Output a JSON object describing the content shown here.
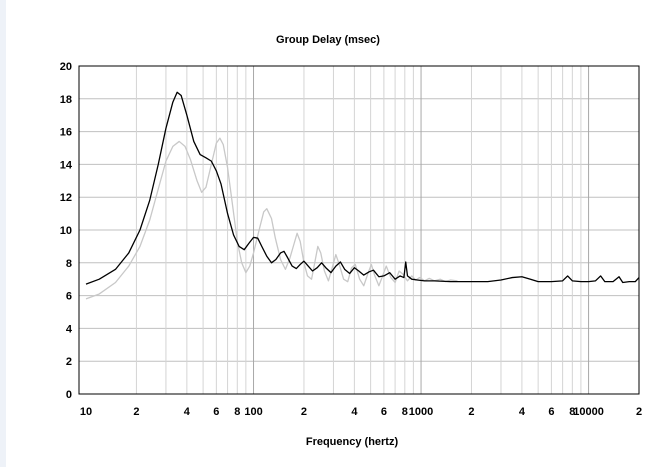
{
  "chart_data": {
    "type": "line",
    "title": "Group Delay (msec)",
    "xlabel": "Frequency (hertz)",
    "ylabel": "",
    "xscale": "log",
    "xlim": [
      10,
      20000
    ],
    "ylim": [
      0,
      20
    ],
    "grid": true,
    "colors": {
      "series_dark": "#000000",
      "series_light": "#c8c8c8",
      "grid": "#c0c0c0",
      "frame": "#000000"
    },
    "x_tick_labels": [
      {
        "x": 10,
        "label": "10"
      },
      {
        "x": 20,
        "label": "2"
      },
      {
        "x": 40,
        "label": "4"
      },
      {
        "x": 60,
        "label": "6"
      },
      {
        "x": 80,
        "label": "8"
      },
      {
        "x": 100,
        "label": "100"
      },
      {
        "x": 200,
        "label": "2"
      },
      {
        "x": 400,
        "label": "4"
      },
      {
        "x": 600,
        "label": "6"
      },
      {
        "x": 800,
        "label": "8"
      },
      {
        "x": 1000,
        "label": "1000"
      },
      {
        "x": 2000,
        "label": "2"
      },
      {
        "x": 4000,
        "label": "4"
      },
      {
        "x": 6000,
        "label": "6"
      },
      {
        "x": 8000,
        "label": "8"
      },
      {
        "x": 10000,
        "label": "10000"
      },
      {
        "x": 20000,
        "label": "2"
      }
    ],
    "y_ticks": [
      0,
      2,
      4,
      6,
      8,
      10,
      12,
      14,
      16,
      18,
      20
    ],
    "series": [
      {
        "color": "#000000",
        "points": [
          [
            10,
            6.7
          ],
          [
            12,
            7.0
          ],
          [
            15,
            7.6
          ],
          [
            18,
            8.6
          ],
          [
            21,
            10.0
          ],
          [
            24,
            11.8
          ],
          [
            27,
            14.0
          ],
          [
            30,
            16.2
          ],
          [
            33,
            17.8
          ],
          [
            35,
            18.4
          ],
          [
            37,
            18.2
          ],
          [
            40,
            17.0
          ],
          [
            44,
            15.4
          ],
          [
            48,
            14.6
          ],
          [
            52,
            14.4
          ],
          [
            56,
            14.2
          ],
          [
            60,
            13.6
          ],
          [
            64,
            12.8
          ],
          [
            70,
            11.0
          ],
          [
            76,
            9.7
          ],
          [
            82,
            9.0
          ],
          [
            88,
            8.8
          ],
          [
            94,
            9.2
          ],
          [
            100,
            9.55
          ],
          [
            106,
            9.5
          ],
          [
            112,
            9.0
          ],
          [
            120,
            8.4
          ],
          [
            128,
            8.0
          ],
          [
            136,
            8.2
          ],
          [
            145,
            8.6
          ],
          [
            152,
            8.7
          ],
          [
            160,
            8.3
          ],
          [
            170,
            7.8
          ],
          [
            180,
            7.65
          ],
          [
            190,
            7.9
          ],
          [
            200,
            8.1
          ],
          [
            212,
            7.8
          ],
          [
            225,
            7.5
          ],
          [
            240,
            7.7
          ],
          [
            255,
            8.0
          ],
          [
            270,
            7.7
          ],
          [
            290,
            7.4
          ],
          [
            310,
            7.8
          ],
          [
            330,
            8.05
          ],
          [
            350,
            7.6
          ],
          [
            375,
            7.35
          ],
          [
            400,
            7.7
          ],
          [
            425,
            7.5
          ],
          [
            455,
            7.25
          ],
          [
            490,
            7.45
          ],
          [
            520,
            7.55
          ],
          [
            560,
            7.15
          ],
          [
            600,
            7.2
          ],
          [
            650,
            7.4
          ],
          [
            700,
            7.0
          ],
          [
            750,
            7.2
          ],
          [
            790,
            7.1
          ],
          [
            810,
            8.05
          ],
          [
            830,
            7.2
          ],
          [
            880,
            7.0
          ],
          [
            950,
            6.95
          ],
          [
            1050,
            6.9
          ],
          [
            1200,
            6.9
          ],
          [
            1500,
            6.85
          ],
          [
            2000,
            6.85
          ],
          [
            2500,
            6.85
          ],
          [
            3000,
            6.95
          ],
          [
            3500,
            7.1
          ],
          [
            4000,
            7.15
          ],
          [
            4500,
            7.0
          ],
          [
            5000,
            6.85
          ],
          [
            6000,
            6.85
          ],
          [
            7000,
            6.9
          ],
          [
            7500,
            7.2
          ],
          [
            8000,
            6.9
          ],
          [
            9000,
            6.85
          ],
          [
            10000,
            6.85
          ],
          [
            11000,
            6.9
          ],
          [
            11800,
            7.2
          ],
          [
            12500,
            6.85
          ],
          [
            14000,
            6.85
          ],
          [
            15200,
            7.15
          ],
          [
            16000,
            6.8
          ],
          [
            17500,
            6.85
          ],
          [
            19000,
            6.85
          ],
          [
            20000,
            7.1
          ]
        ]
      },
      {
        "color": "#c8c8c8",
        "points": [
          [
            10,
            5.8
          ],
          [
            12,
            6.1
          ],
          [
            15,
            6.8
          ],
          [
            18,
            7.8
          ],
          [
            21,
            9.0
          ],
          [
            24,
            10.6
          ],
          [
            27,
            12.5
          ],
          [
            30,
            14.2
          ],
          [
            33,
            15.1
          ],
          [
            36,
            15.4
          ],
          [
            39,
            15.1
          ],
          [
            42,
            14.3
          ],
          [
            46,
            13.0
          ],
          [
            49,
            12.3
          ],
          [
            52,
            12.6
          ],
          [
            56,
            14.0
          ],
          [
            60,
            15.3
          ],
          [
            63,
            15.6
          ],
          [
            66,
            15.2
          ],
          [
            70,
            13.8
          ],
          [
            75,
            11.5
          ],
          [
            80,
            9.3
          ],
          [
            85,
            8.0
          ],
          [
            90,
            7.4
          ],
          [
            95,
            7.8
          ],
          [
            100,
            8.6
          ],
          [
            108,
            10.0
          ],
          [
            115,
            11.1
          ],
          [
            120,
            11.3
          ],
          [
            128,
            10.7
          ],
          [
            135,
            9.5
          ],
          [
            145,
            8.2
          ],
          [
            155,
            7.6
          ],
          [
            165,
            8.3
          ],
          [
            175,
            9.2
          ],
          [
            182,
            9.8
          ],
          [
            190,
            9.3
          ],
          [
            200,
            8.0
          ],
          [
            210,
            7.2
          ],
          [
            222,
            7.0
          ],
          [
            232,
            8.0
          ],
          [
            242,
            9.0
          ],
          [
            252,
            8.6
          ],
          [
            265,
            7.5
          ],
          [
            280,
            6.9
          ],
          [
            295,
            7.7
          ],
          [
            310,
            8.5
          ],
          [
            325,
            7.9
          ],
          [
            345,
            7.0
          ],
          [
            365,
            6.85
          ],
          [
            385,
            7.7
          ],
          [
            405,
            7.9
          ],
          [
            430,
            7.0
          ],
          [
            455,
            6.6
          ],
          [
            480,
            7.3
          ],
          [
            505,
            7.9
          ],
          [
            530,
            7.2
          ],
          [
            560,
            6.6
          ],
          [
            590,
            7.2
          ],
          [
            620,
            7.8
          ],
          [
            660,
            7.1
          ],
          [
            700,
            6.8
          ],
          [
            740,
            7.5
          ],
          [
            780,
            7.3
          ],
          [
            830,
            6.9
          ],
          [
            880,
            7.2
          ],
          [
            930,
            6.95
          ],
          [
            980,
            7.1
          ],
          [
            1050,
            6.9
          ],
          [
            1120,
            7.05
          ],
          [
            1200,
            6.9
          ],
          [
            1300,
            7.0
          ],
          [
            1400,
            6.85
          ],
          [
            1500,
            6.95
          ],
          [
            1650,
            6.9
          ]
        ]
      }
    ]
  }
}
